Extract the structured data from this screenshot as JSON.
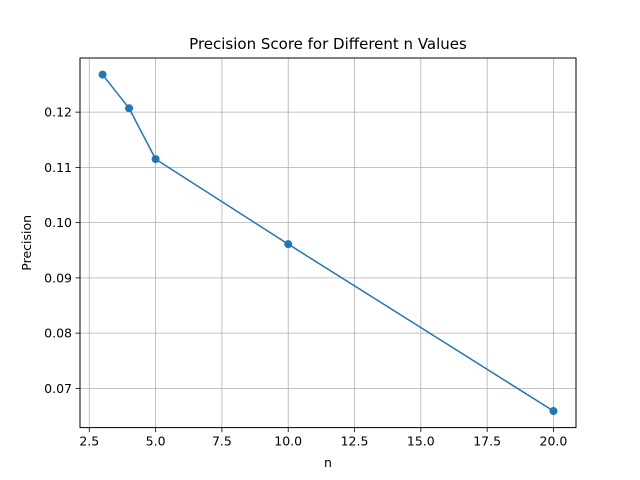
{
  "chart_data": {
    "type": "line",
    "title": "Precision Score for Different n Values",
    "xlabel": "n",
    "ylabel": "Precision",
    "xlim": [
      2.15,
      20.85
    ],
    "ylim": [
      0.0629,
      0.1298
    ],
    "x_ticks": [
      2.5,
      5.0,
      7.5,
      10.0,
      12.5,
      15.0,
      17.5,
      20.0
    ],
    "x_tick_labels": [
      "2.5",
      "5.0",
      "7.5",
      "10.0",
      "12.5",
      "15.0",
      "17.5",
      "20.0"
    ],
    "y_ticks": [
      0.07,
      0.08,
      0.09,
      0.1,
      0.11,
      0.12
    ],
    "y_tick_labels": [
      "0.07",
      "0.08",
      "0.09",
      "0.10",
      "0.11",
      "0.12"
    ],
    "grid": true,
    "series": [
      {
        "color": "#1f77b4",
        "marker": "circle",
        "x": [
          3,
          4,
          5,
          10,
          20
        ],
        "values": [
          0.1268,
          0.1207,
          0.1115,
          0.0961,
          0.0659
        ]
      }
    ]
  }
}
